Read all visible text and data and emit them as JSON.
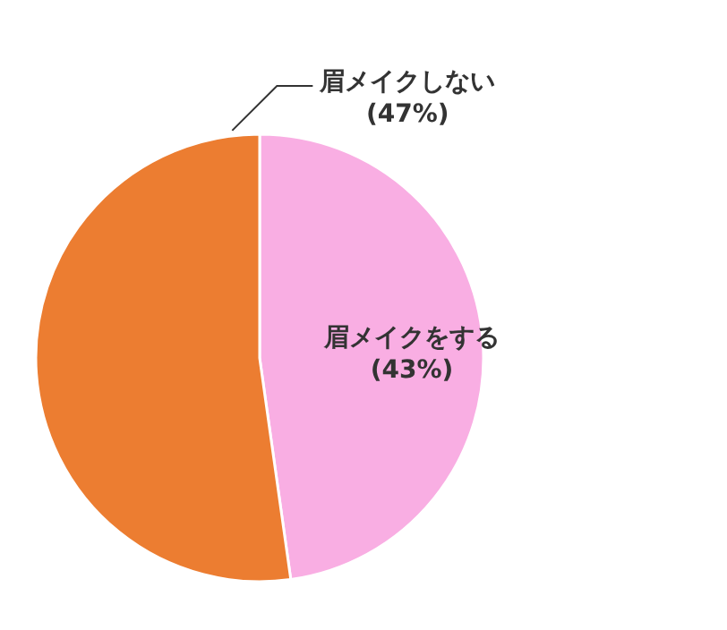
{
  "chart_data": {
    "type": "pie",
    "categories": [
      "眉メイクをする",
      "眉メイクしない"
    ],
    "values": [
      43,
      47
    ],
    "colors": [
      "#f9aee3",
      "#ec7d31"
    ],
    "value_labels": [
      "(43%)",
      "(47%)"
    ]
  }
}
